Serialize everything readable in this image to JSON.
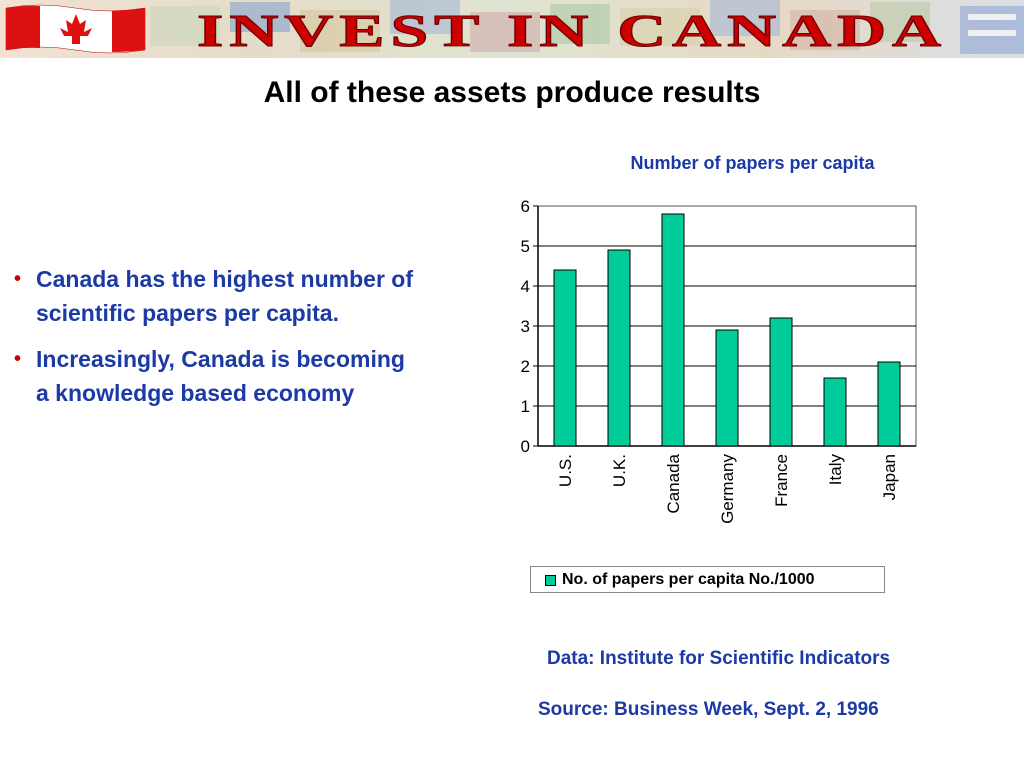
{
  "banner": {
    "text": "INVEST IN CANADA",
    "text_color": "#cc0000",
    "flag_red": "#dd1111"
  },
  "slide": {
    "title": "All of these assets produce results",
    "bullets": [
      "Canada has the highest number of scientific papers per capita.",
      "Increasingly, Canada is becoming a knowledge based economy"
    ],
    "bullet_marker": "•",
    "data_note": "Data: Institute for Scientific Indicators",
    "source_note": "Source:  Business Week, Sept. 2, 1996"
  },
  "chart_data": {
    "type": "bar",
    "title": "Number of papers per capita",
    "xlabel": "",
    "ylabel": "",
    "categories": [
      "U.S.",
      "U.K.",
      "Canada",
      "Germany",
      "France",
      "Italy",
      "Japan"
    ],
    "series": [
      {
        "name": "No. of papers per capita No./1000",
        "values": [
          4.4,
          4.9,
          5.8,
          2.9,
          3.2,
          1.7,
          2.1
        ]
      }
    ],
    "ylim": [
      0,
      6
    ],
    "yticks": [
      "0",
      "1",
      "2",
      "3",
      "4",
      "5",
      "6"
    ],
    "grid": true,
    "legend_position": "bottom",
    "bar_color": "#00cc99"
  }
}
